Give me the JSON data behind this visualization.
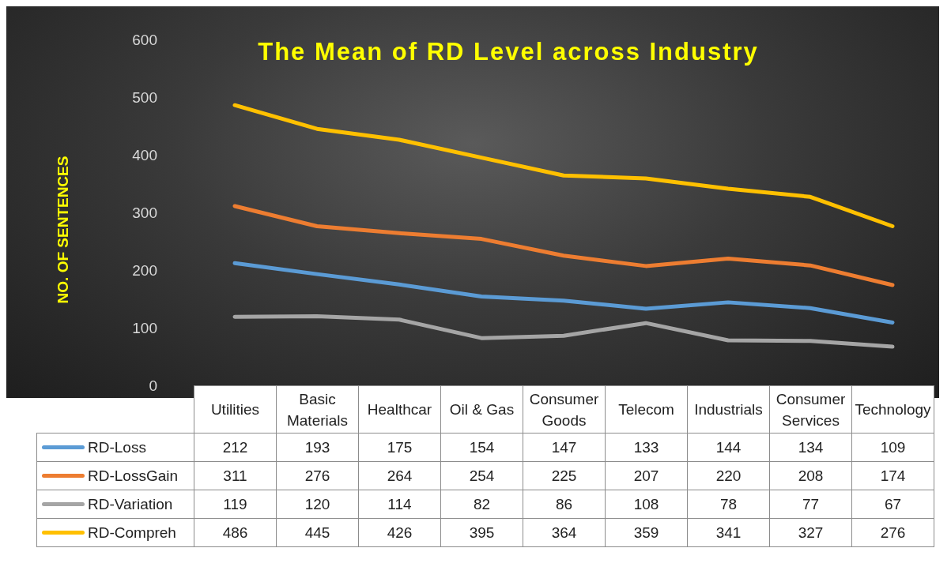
{
  "chart_data": {
    "type": "line",
    "title": "The Mean of RD Level across Industry",
    "ylabel": "NO. OF SENTENCES",
    "categories": [
      "Utilities",
      "Basic Materials",
      "Healthcar",
      "Oil & Gas",
      "Consumer Goods",
      "Telecom",
      "Industrials",
      "Consumer Services",
      "Technology"
    ],
    "series": [
      {
        "name": "RD-Loss",
        "color": "#5b9bd5",
        "values": [
          212,
          193,
          175,
          154,
          147,
          133,
          144,
          134,
          109
        ]
      },
      {
        "name": "RD-LossGain",
        "color": "#ed7d31",
        "values": [
          311,
          276,
          264,
          254,
          225,
          207,
          220,
          208,
          174
        ]
      },
      {
        "name": "RD-Variation",
        "color": "#a5a5a5",
        "values": [
          119,
          120,
          114,
          82,
          86,
          108,
          78,
          77,
          67
        ]
      },
      {
        "name": "RD-Compreh",
        "color": "#ffc000",
        "values": [
          486,
          445,
          426,
          395,
          364,
          359,
          341,
          327,
          276
        ]
      }
    ],
    "ylim": [
      0,
      600
    ],
    "yticks": [
      0,
      100,
      200,
      300,
      400,
      500,
      600
    ],
    "grid": false,
    "legend": "bottom",
    "data_labels": true,
    "marker": "none",
    "line_style": "solid"
  }
}
